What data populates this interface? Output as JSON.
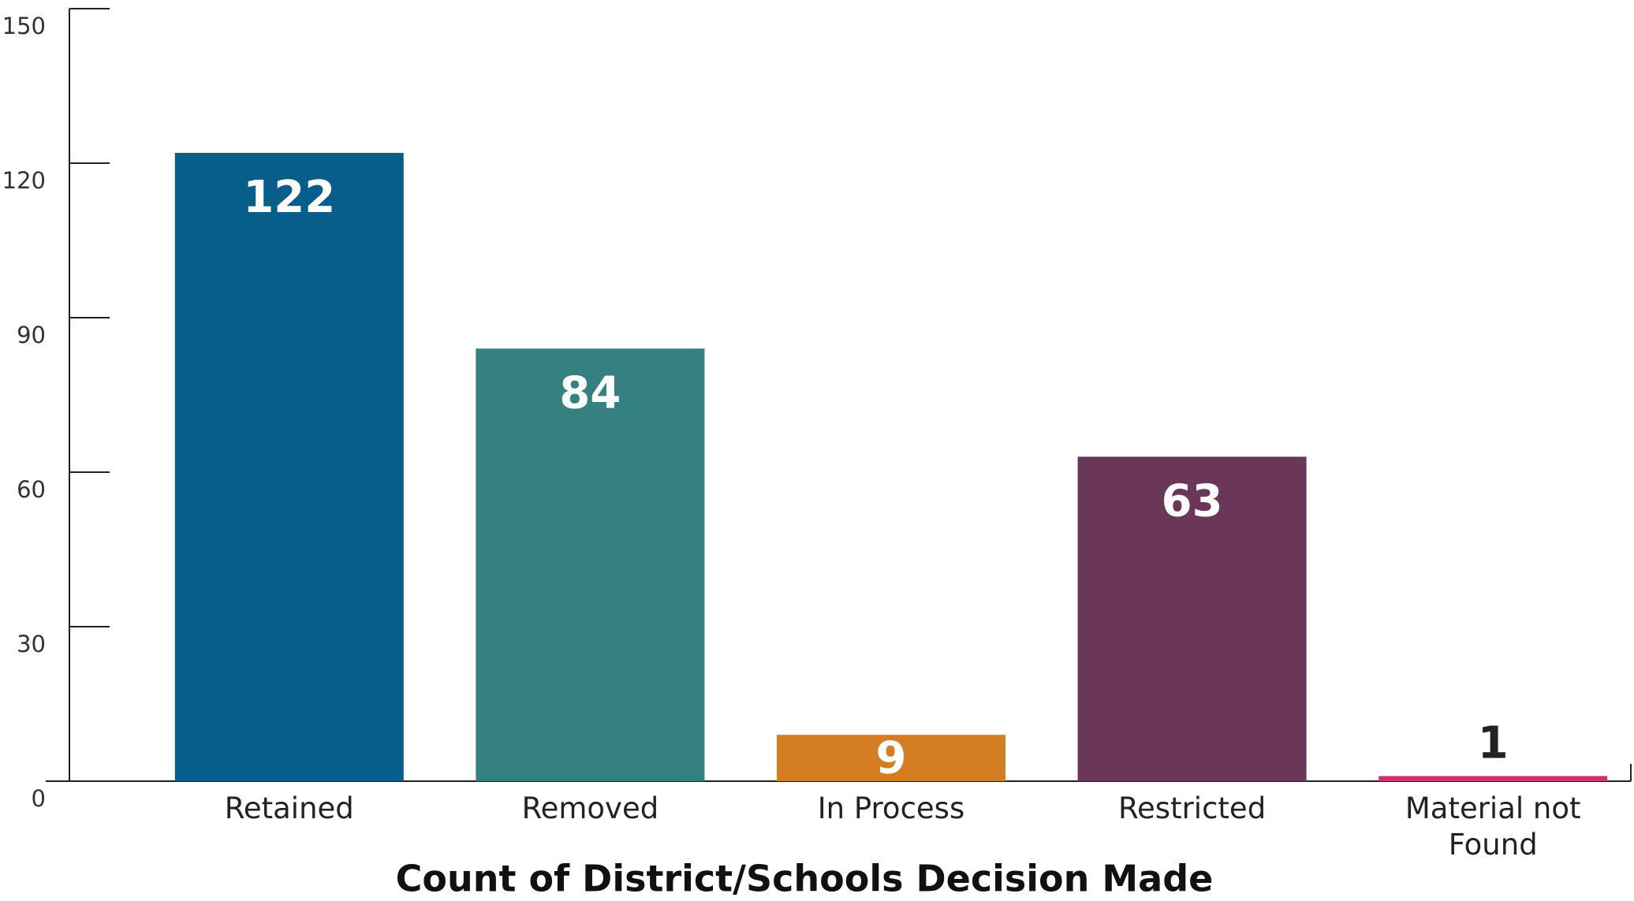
{
  "chart_data": {
    "type": "bar",
    "title": "Count of District/Schools Decision Made",
    "categories": [
      "Retained",
      "Removed",
      "In Process",
      "Restricted",
      "Material not Found"
    ],
    "values": [
      122,
      84,
      9,
      63,
      1
    ],
    "colors": [
      "#075e8a",
      "#358080",
      "#d37e22",
      "#6b3759",
      "#cc3370"
    ],
    "ylim": [
      0,
      150
    ],
    "yticks": [
      0,
      30,
      60,
      90,
      120,
      150
    ]
  }
}
